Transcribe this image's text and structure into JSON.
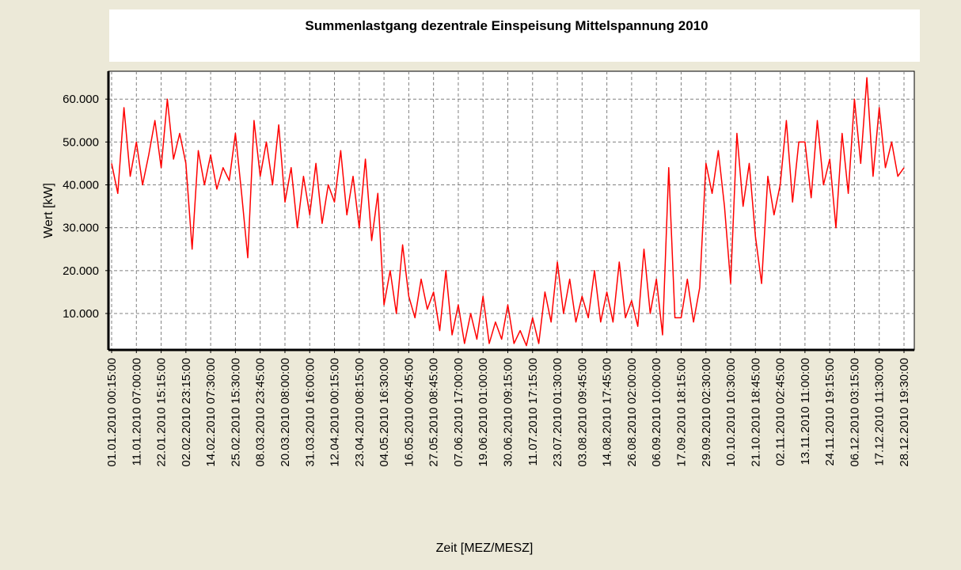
{
  "chart_data": {
    "type": "line",
    "title": "Summenlastgang dezentrale Einspeisung Mittelspannung 2010",
    "x_label": "Zeit [MEZ/MESZ]",
    "y_label": "Wert [kW]",
    "categories": [
      "01.01.2010 00:15:00",
      null,
      null,
      null,
      "11.01.2010 07:00:00",
      null,
      null,
      null,
      "22.01.2010 15:15:00",
      null,
      null,
      null,
      "02.02.2010 23:15:00",
      null,
      null,
      null,
      "14.02.2010 07:30:00",
      null,
      null,
      null,
      "25.02.2010 15:30:00",
      null,
      null,
      null,
      "08.03.2010 23:45:00",
      null,
      null,
      null,
      "20.03.2010 08:00:00",
      null,
      null,
      null,
      "31.03.2010 16:00:00",
      null,
      null,
      null,
      "12.04.2010 00:15:00",
      null,
      null,
      null,
      "23.04.2010 08:15:00",
      null,
      null,
      null,
      "04.05.2010 16:30:00",
      null,
      null,
      null,
      "16.05.2010 00:45:00",
      null,
      null,
      null,
      "27.05.2010 08:45:00",
      null,
      null,
      null,
      "07.06.2010 17:00:00",
      null,
      null,
      null,
      "19.06.2010 01:00:00",
      null,
      null,
      null,
      "30.06.2010 09:15:00",
      null,
      null,
      null,
      "11.07.2010 17:15:00",
      null,
      null,
      null,
      "23.07.2010 01:30:00",
      null,
      null,
      null,
      "03.08.2010 09:45:00",
      null,
      null,
      null,
      "14.08.2010 17:45:00",
      null,
      null,
      null,
      "26.08.2010 02:00:00",
      null,
      null,
      null,
      "06.09.2010 10:00:00",
      null,
      null,
      null,
      "17.09.2010 18:15:00",
      null,
      null,
      null,
      "29.09.2010 02:30:00",
      null,
      null,
      null,
      "10.10.2010 10:30:00",
      null,
      null,
      null,
      "21.10.2010 18:45:00",
      null,
      null,
      null,
      "02.11.2010 02:45:00",
      null,
      null,
      null,
      "13.11.2010 11:00:00",
      null,
      null,
      null,
      "24.11.2010 19:15:00",
      null,
      null,
      null,
      "06.12.2010 03:15:00",
      null,
      null,
      null,
      "17.12.2010 11:30:00",
      null,
      null,
      null,
      "28.12.2010 19:30:00"
    ],
    "series": [
      {
        "color": "#ff0000",
        "values": [
          45000,
          38000,
          58000,
          42000,
          50000,
          40000,
          47000,
          55000,
          44000,
          60000,
          46000,
          52000,
          45000,
          25000,
          48000,
          40000,
          47000,
          39000,
          44000,
          41000,
          52000,
          38000,
          23000,
          55000,
          42000,
          50000,
          40000,
          54000,
          36000,
          44000,
          30000,
          42000,
          33000,
          45000,
          31000,
          40000,
          36000,
          48000,
          33000,
          42000,
          30000,
          46000,
          27000,
          38000,
          12000,
          20000,
          10000,
          26000,
          14000,
          9000,
          18000,
          11000,
          15000,
          6000,
          20000,
          5000,
          12000,
          3000,
          10000,
          4000,
          14000,
          3000,
          8000,
          4000,
          12000,
          3000,
          6000,
          2500,
          9000,
          3000,
          15000,
          8000,
          22000,
          10000,
          18000,
          8000,
          14000,
          9000,
          20000,
          8000,
          15000,
          8000,
          22000,
          9000,
          13000,
          7000,
          25000,
          10000,
          18000,
          5000,
          44000,
          9000,
          9000,
          18000,
          8000,
          16000,
          45000,
          38000,
          48000,
          35000,
          17000,
          52000,
          35000,
          45000,
          28000,
          17000,
          42000,
          33000,
          40000,
          55000,
          36000,
          50000,
          50000,
          37000,
          55000,
          40000,
          46000,
          30000,
          52000,
          38000,
          60000,
          45000,
          65000,
          42000,
          58000,
          44000,
          50000,
          42000,
          44000
        ]
      }
    ],
    "ylim": [
      1500,
      66500
    ],
    "yticks": [
      {
        "value": 10000,
        "label": "10.000"
      },
      {
        "value": 20000,
        "label": "20.000"
      },
      {
        "value": 30000,
        "label": "30.000"
      },
      {
        "value": 40000,
        "label": "40.000"
      },
      {
        "value": 50000,
        "label": "50.000"
      },
      {
        "value": 60000,
        "label": "60.000"
      }
    ],
    "grid": true
  }
}
